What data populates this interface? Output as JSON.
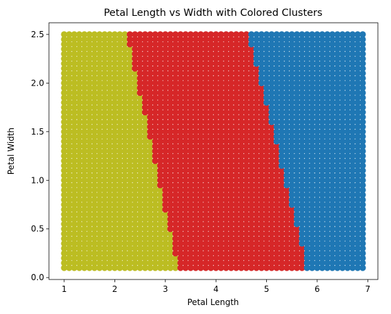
{
  "chart_data": {
    "type": "scatter",
    "title": "Petal Length vs Width with Colored Clusters",
    "xlabel": "Petal Length",
    "ylabel": "Petal Width",
    "xlim": [
      0.7,
      7.2
    ],
    "ylim": [
      -0.02,
      2.62
    ],
    "xticks": [
      1,
      2,
      3,
      4,
      5,
      6,
      7
    ],
    "yticks": [
      0.0,
      0.5,
      1.0,
      1.5,
      2.0,
      2.5
    ],
    "ytick_labels": [
      "0.0",
      "0.5",
      "1.0",
      "1.5",
      "2.0",
      "2.5"
    ],
    "grid": false,
    "legend": false,
    "grid_points": {
      "x_start": 1.0,
      "x_step": 0.1,
      "x_count": 60,
      "y_start": 0.1,
      "y_step": 0.05,
      "y_count": 49
    },
    "clusters": [
      {
        "color": "#bcbd22",
        "region": "left of boundary 1"
      },
      {
        "color": "#d62728",
        "region": "between boundaries"
      },
      {
        "color": "#1f77b4",
        "region": "right of boundary 2"
      }
    ],
    "boundaries": [
      {
        "points": [
          [
            3.25,
            0.1
          ],
          [
            2.25,
            2.5
          ]
        ]
      },
      {
        "points": [
          [
            5.8,
            0.1
          ],
          [
            4.65,
            2.5
          ]
        ]
      }
    ]
  }
}
